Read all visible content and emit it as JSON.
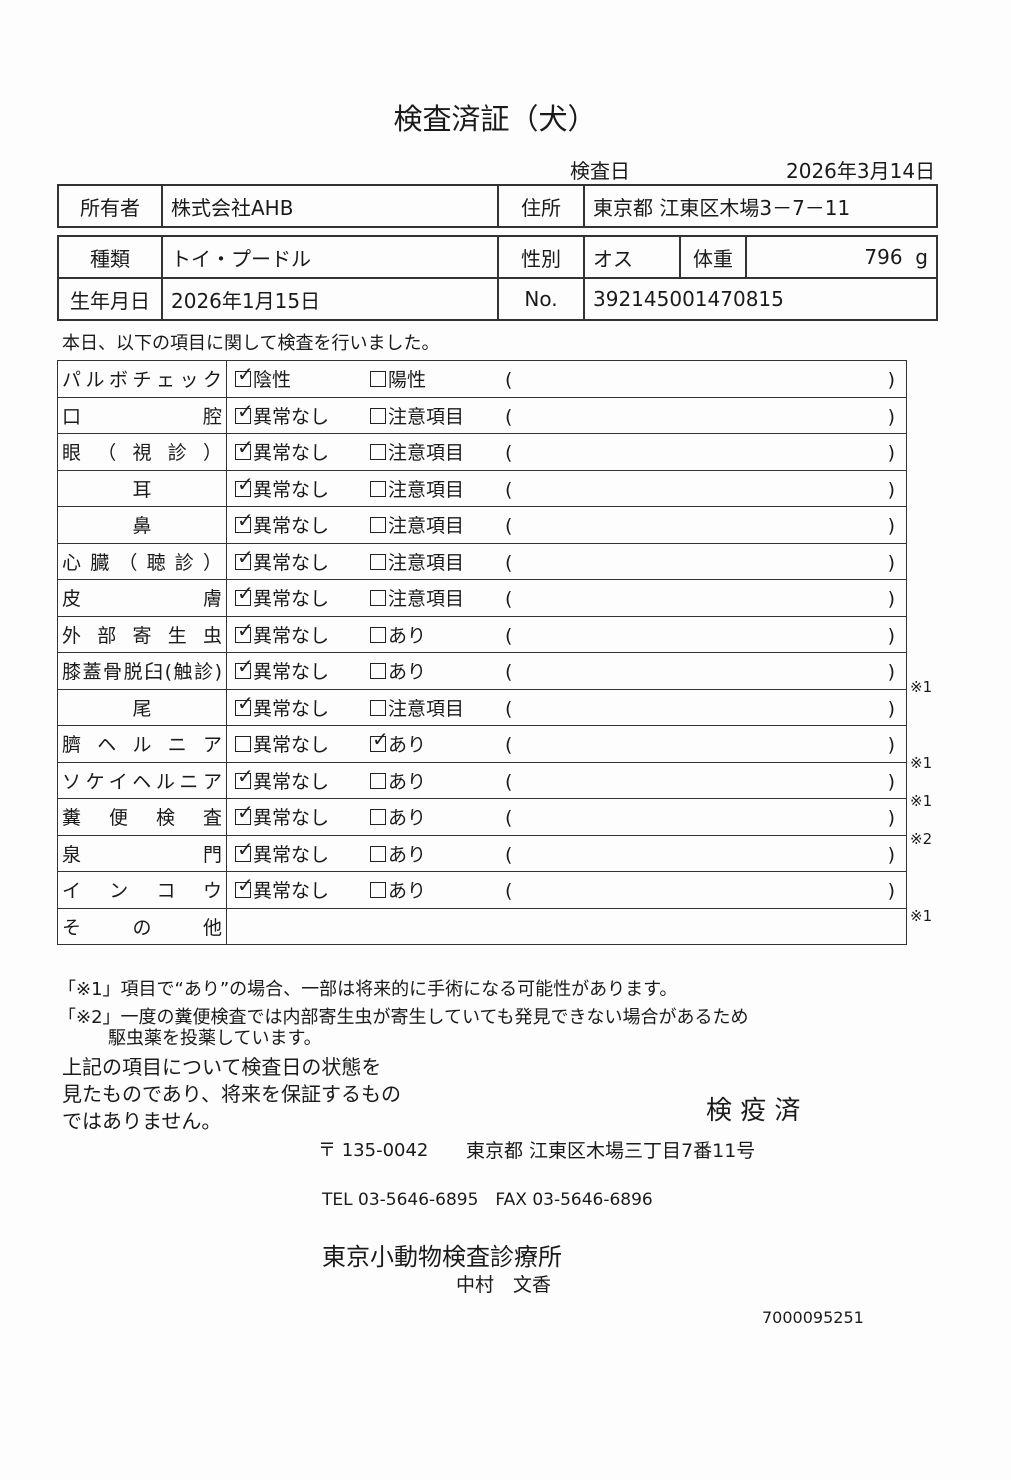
{
  "title": "検査済証（犬）",
  "exam_date_label": "検査日",
  "exam_date": "2026年3月14日",
  "owner": {
    "label": "所有者",
    "value": "株式会社AHB"
  },
  "address": {
    "label": "住所",
    "value": "東京都 江東区木場3－7－11"
  },
  "breed": {
    "label": "種類",
    "value": "トイ・プードル"
  },
  "sex": {
    "label": "性別",
    "value": "オス"
  },
  "weight": {
    "label": "体重",
    "value": "796",
    "unit": "g"
  },
  "birth": {
    "label": "生年月日",
    "value": "2026年1月15日"
  },
  "number": {
    "label": "No.",
    "value": "392145001470815"
  },
  "intro": "本日、以下の項目に関して検査を行いました。",
  "paren_open": "(",
  "paren_close": ")",
  "items": [
    {
      "label": "パルボチェック",
      "opt1": "陰性",
      "opt2": "陽性",
      "checked": 1,
      "note": ""
    },
    {
      "label": "口腔",
      "opt1": "異常なし",
      "opt2": "注意項目",
      "checked": 1,
      "note": ""
    },
    {
      "label": "眼（視診）",
      "opt1": "異常なし",
      "opt2": "注意項目",
      "checked": 1,
      "note": ""
    },
    {
      "label": "耳",
      "opt1": "異常なし",
      "opt2": "注意項目",
      "checked": 1,
      "note": ""
    },
    {
      "label": "鼻",
      "opt1": "異常なし",
      "opt2": "注意項目",
      "checked": 1,
      "note": ""
    },
    {
      "label": "心臓（聴診）",
      "opt1": "異常なし",
      "opt2": "注意項目",
      "checked": 1,
      "note": ""
    },
    {
      "label": "皮膚",
      "opt1": "異常なし",
      "opt2": "注意項目",
      "checked": 1,
      "note": ""
    },
    {
      "label": "外部寄生虫",
      "opt1": "異常なし",
      "opt2": "あり",
      "checked": 1,
      "note": ""
    },
    {
      "label": "膝蓋骨脱臼(触診)",
      "opt1": "異常なし",
      "opt2": "あり",
      "checked": 1,
      "note": "※1"
    },
    {
      "label": "尾",
      "opt1": "異常なし",
      "opt2": "注意項目",
      "checked": 1,
      "note": ""
    },
    {
      "label": "臍ヘルニア",
      "opt1": "異常なし",
      "opt2": "あり",
      "checked": 2,
      "note": "※1"
    },
    {
      "label": "ソケイヘルニア",
      "opt1": "異常なし",
      "opt2": "あり",
      "checked": 1,
      "note": "※1"
    },
    {
      "label": "糞便検査",
      "opt1": "異常なし",
      "opt2": "あり",
      "checked": 1,
      "note": "※2"
    },
    {
      "label": "泉門",
      "opt1": "異常なし",
      "opt2": "あり",
      "checked": 1,
      "note": ""
    },
    {
      "label": "インコウ",
      "opt1": "異常なし",
      "opt2": "あり",
      "checked": 1,
      "note": "※1"
    }
  ],
  "other_label": "その他",
  "footnote1": "「※1」項目で“あり”の場合、一部は将来的に手術になる可能性があります。",
  "footnote2a": "「※2」一度の糞便検査では内部寄生虫が寄生していても発見できない場合があるため",
  "footnote2b": "駆虫薬を投薬しています。",
  "disclaimer": [
    "上記の項目について検査日の状態を",
    "見たものであり、将来を保証するもの",
    "ではありません。"
  ],
  "stamp": "検 疫 済",
  "postal": "〒 135-0042",
  "clinic_address": "東京都 江東区木場三丁目7番11号",
  "contact": "TEL 03-5646-6895　FAX 03-5646-6896",
  "clinic_name": "東京小動物検査診療所",
  "doctor": "中村　文香",
  "doc_id": "7000095251"
}
